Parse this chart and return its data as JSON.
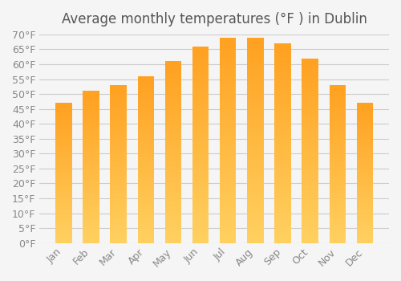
{
  "title": "Average monthly temperatures (°F ) in Dublin",
  "months": [
    "Jan",
    "Feb",
    "Mar",
    "Apr",
    "May",
    "Jun",
    "Jul",
    "Aug",
    "Sep",
    "Oct",
    "Nov",
    "Dec"
  ],
  "values": [
    47,
    51,
    53,
    56,
    61,
    66,
    69,
    69,
    67,
    62,
    53,
    47
  ],
  "bar_color_bottom": "#FFD060",
  "bar_color_top": "#FFA020",
  "background_color": "#f5f5f5",
  "ylim": [
    0,
    70
  ],
  "ytick_step": 5,
  "title_fontsize": 12,
  "tick_fontsize": 9,
  "grid_color": "#cccccc"
}
